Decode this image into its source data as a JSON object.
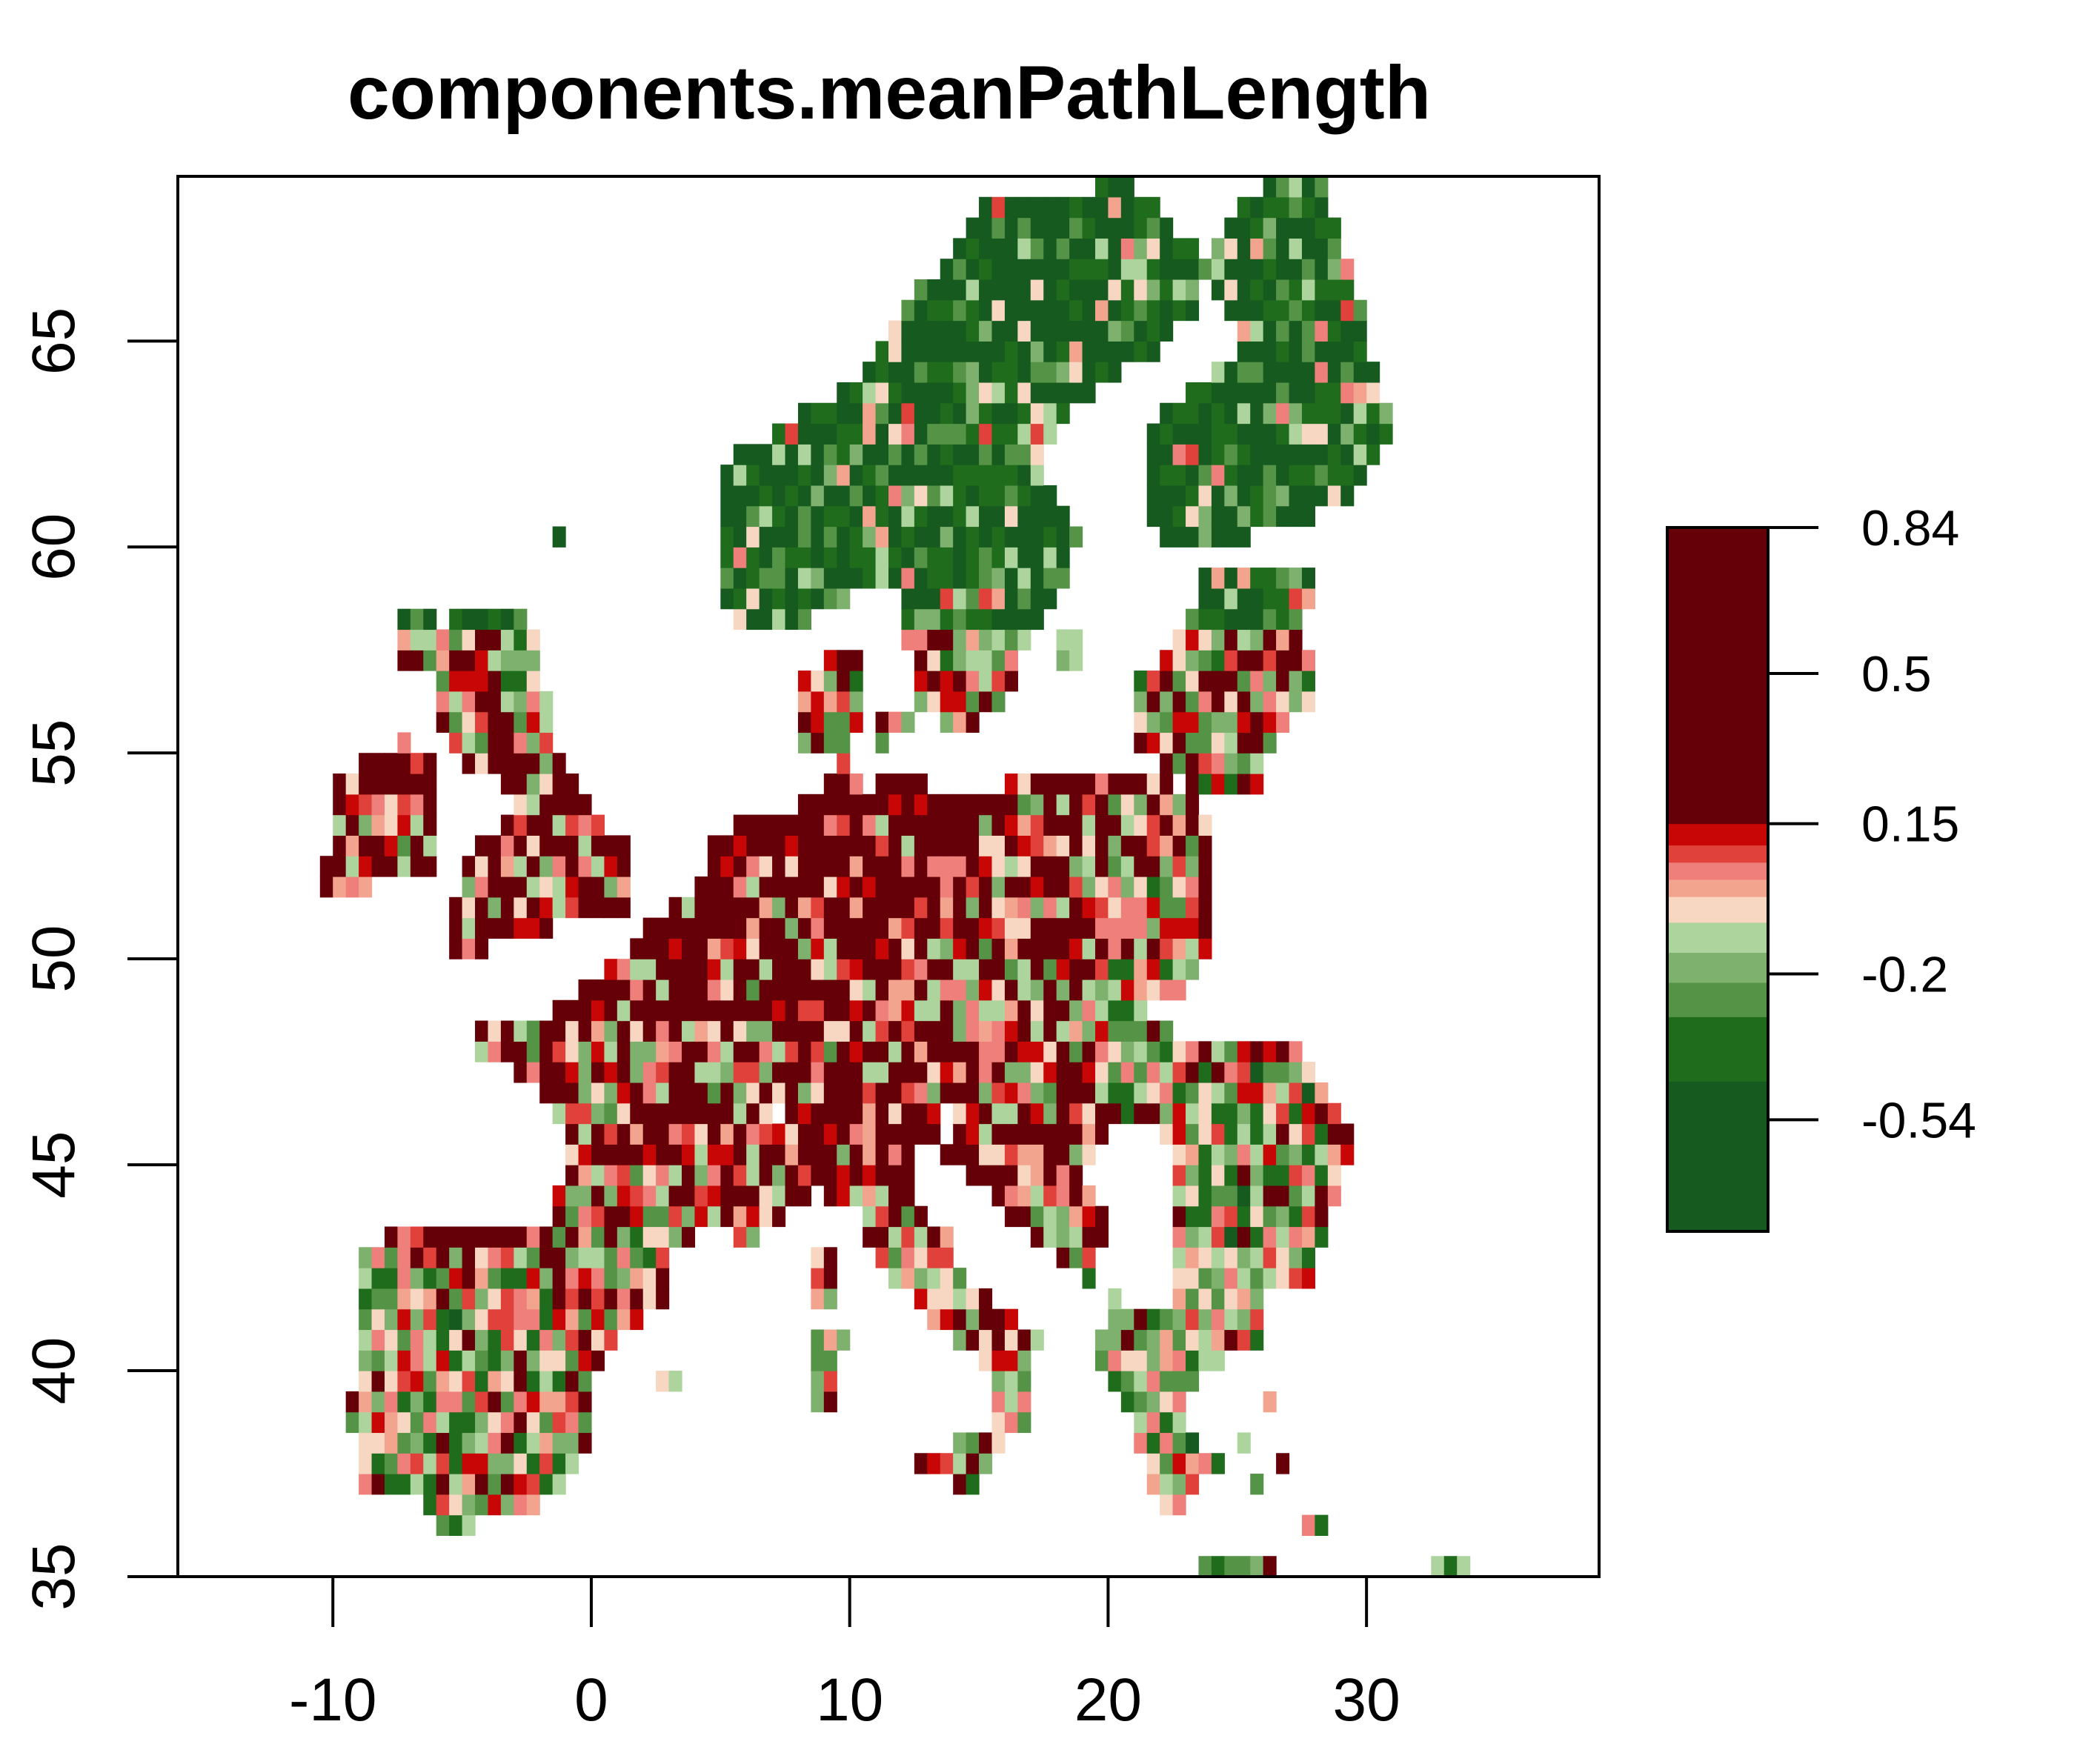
{
  "title": "components.meanPathLength",
  "colors": {
    "axis": "#000000",
    "palette": [
      "#165a20",
      "#165a20",
      "#1f6c1c",
      "#559447",
      "#7eb06e",
      "#add49d",
      "#f7d6c2",
      "#f2a48f",
      "#ee7f7a",
      "#e0413b",
      "#c80606",
      "#650008",
      "#650008"
    ]
  },
  "chart_data": {
    "type": "heatmap",
    "title": "components.meanPathLength",
    "xlabel": "",
    "ylabel": "",
    "xlim": [
      -16,
      39
    ],
    "ylim": [
      35,
      69
    ],
    "x_ticks": [
      -10,
      0,
      10,
      20,
      30
    ],
    "y_ticks": [
      35,
      40,
      45,
      50,
      55,
      60,
      65
    ],
    "x_tick_labels": [
      "-10",
      "0",
      "10",
      "20",
      "30"
    ],
    "y_tick_labels": [
      "35",
      "40",
      "45",
      "50",
      "55",
      "60",
      "65"
    ],
    "colorbar": {
      "range": [
        -0.8,
        0.84
      ],
      "ticks": [
        0.84,
        0.5,
        0.15,
        -0.2,
        -0.54
      ],
      "tick_labels": [
        "0.84",
        "0.5",
        "0.15",
        "-0.2",
        "-0.54"
      ],
      "breaks": [
        -0.8,
        -0.54,
        -0.45,
        -0.3,
        -0.22,
        -0.15,
        -0.08,
        -0.02,
        0.02,
        0.06,
        0.1,
        0.15,
        0.5,
        0.84
      ]
    },
    "cell_size_deg": 0.5
  }
}
